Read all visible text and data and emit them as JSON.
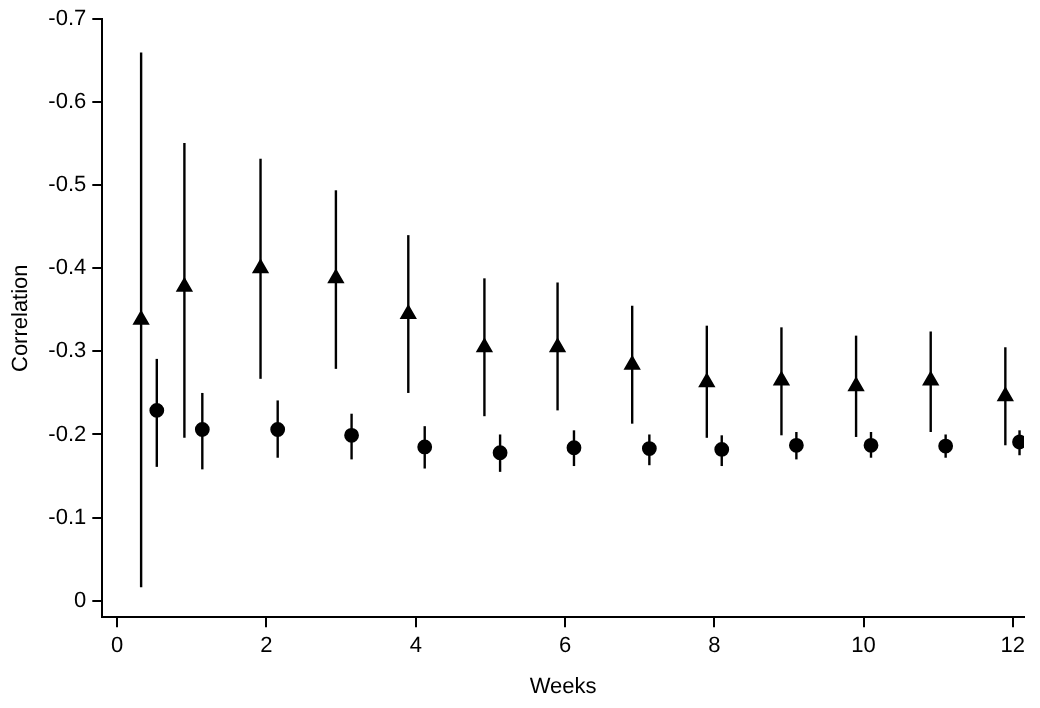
{
  "chart_data": {
    "type": "scatter",
    "xlabel": "Weeks",
    "ylabel": "Correlation",
    "xlim": [
      -0.2,
      12.15
    ],
    "xticks": [
      0,
      2,
      4,
      6,
      8,
      10,
      12
    ],
    "ylim": [
      0.02,
      -0.7
    ],
    "yticks": [
      0,
      -0.1,
      -0.2,
      -0.3,
      -0.4,
      -0.5,
      -0.6,
      -0.7
    ],
    "grid": false,
    "legend": false,
    "series": [
      {
        "color": "#000000",
        "marker": "triangle",
        "x": [
          0.32,
          0.9,
          1.92,
          2.93,
          3.9,
          4.92,
          5.9,
          6.9,
          7.9,
          8.9,
          9.9,
          10.9,
          11.9
        ],
        "values": [
          -0.338,
          -0.378,
          -0.4,
          -0.388,
          -0.345,
          -0.305,
          -0.305,
          -0.284,
          -0.263,
          -0.265,
          -0.258,
          -0.265,
          -0.246
        ],
        "errors": [
          [
            -0.66,
            -0.016
          ],
          [
            -0.551,
            -0.196
          ],
          [
            -0.532,
            -0.267
          ],
          [
            -0.494,
            -0.279
          ],
          [
            -0.44,
            -0.25
          ],
          [
            -0.388,
            -0.222
          ],
          [
            -0.383,
            -0.229
          ],
          [
            -0.355,
            -0.213
          ],
          [
            -0.331,
            -0.196
          ],
          [
            -0.329,
            -0.199
          ],
          [
            -0.319,
            -0.197
          ],
          [
            -0.324,
            -0.203
          ],
          [
            -0.305,
            -0.187
          ]
        ]
      },
      {
        "color": "#000000",
        "marker": "circle",
        "x": [
          0.53,
          1.14,
          2.15,
          3.14,
          4.12,
          5.13,
          6.12,
          7.13,
          8.1,
          9.1,
          10.1,
          11.1,
          12.09
        ],
        "values": [
          -0.229,
          -0.206,
          -0.206,
          -0.199,
          -0.185,
          -0.178,
          -0.184,
          -0.183,
          -0.182,
          -0.187,
          -0.187,
          -0.186,
          -0.191
        ],
        "errors": [
          [
            -0.291,
            -0.161
          ],
          [
            -0.25,
            -0.158
          ],
          [
            -0.241,
            -0.172
          ],
          [
            -0.225,
            -0.17
          ],
          [
            -0.21,
            -0.159
          ],
          [
            -0.2,
            -0.155
          ],
          [
            -0.205,
            -0.162
          ],
          [
            -0.2,
            -0.163
          ],
          [
            -0.199,
            -0.162
          ],
          [
            -0.203,
            -0.17
          ],
          [
            -0.203,
            -0.172
          ],
          [
            -0.2,
            -0.172
          ],
          [
            -0.205,
            -0.175
          ]
        ]
      }
    ]
  }
}
